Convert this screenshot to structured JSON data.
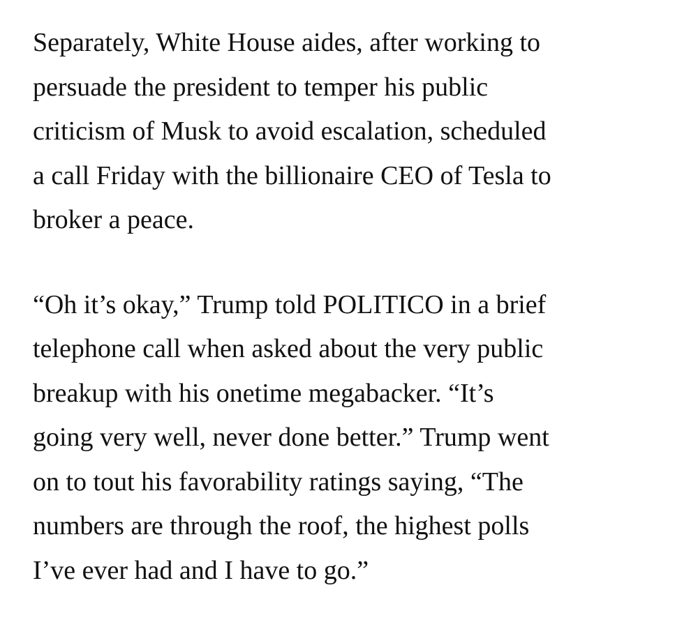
{
  "article": {
    "paragraphs": [
      {
        "lines": [
          "Separately, White House aides, after working to",
          "persuade the president to temper his public",
          "criticism of Musk to avoid escalation, scheduled",
          "a call Friday with the billionaire CEO of Tesla to",
          "broker a peace."
        ]
      },
      {
        "lines": [
          "“Oh it’s okay,” Trump told POLITICO in a brief",
          "telephone call when asked about the very public",
          "breakup with his onetime megabacker. “It’s",
          "going very well, never done better.” Trump went",
          "on to tout his favorability ratings saying, “The",
          "numbers are through the roof, the highest polls",
          "I’ve ever had and I have to go.”"
        ]
      }
    ]
  }
}
